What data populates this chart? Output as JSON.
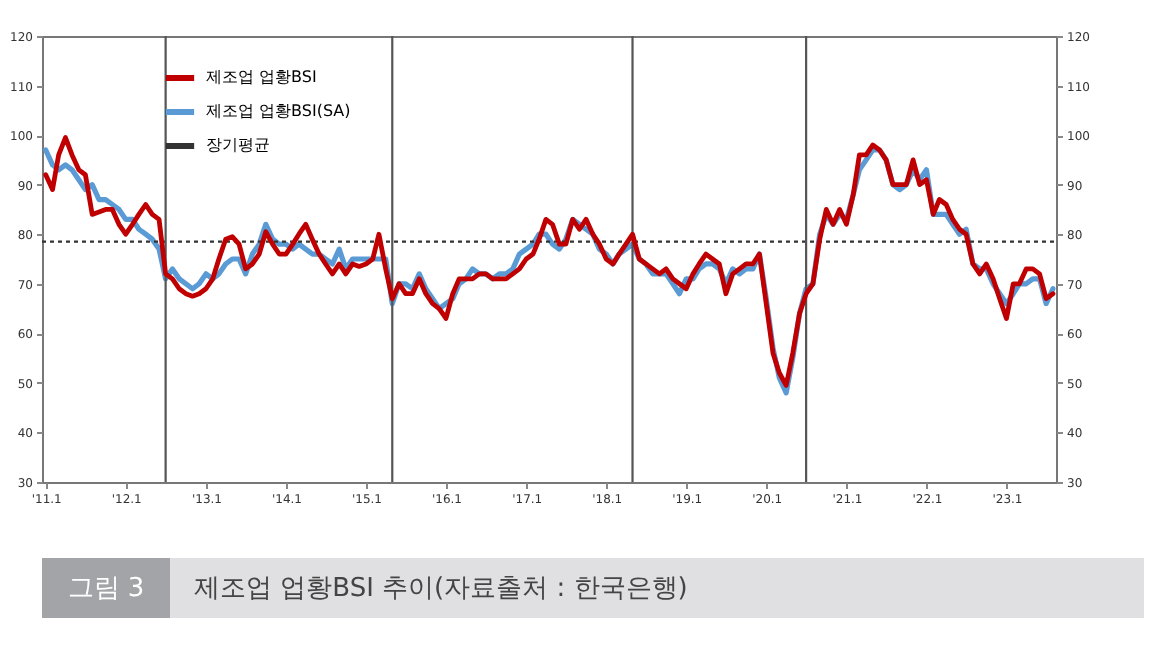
{
  "chart_data": {
    "type": "line",
    "x": [
      "2011-01",
      "2011-02",
      "2011-03",
      "2011-04",
      "2011-05",
      "2011-06",
      "2011-07",
      "2011-08",
      "2011-09",
      "2011-10",
      "2011-11",
      "2011-12",
      "2012-01",
      "2012-02",
      "2012-03",
      "2012-04",
      "2012-05",
      "2012-06",
      "2012-07",
      "2012-08",
      "2012-09",
      "2012-10",
      "2012-11",
      "2012-12",
      "2013-01",
      "2013-02",
      "2013-03",
      "2013-04",
      "2013-05",
      "2013-06",
      "2013-07",
      "2013-08",
      "2013-09",
      "2013-10",
      "2013-11",
      "2013-12",
      "2014-01",
      "2014-02",
      "2014-03",
      "2014-04",
      "2014-05",
      "2014-06",
      "2014-07",
      "2014-08",
      "2014-09",
      "2014-10",
      "2014-11",
      "2014-12",
      "2015-01",
      "2015-02",
      "2015-03",
      "2015-04",
      "2015-05",
      "2015-06",
      "2015-07",
      "2015-08",
      "2015-09",
      "2015-10",
      "2015-11",
      "2015-12",
      "2016-01",
      "2016-02",
      "2016-03",
      "2016-04",
      "2016-05",
      "2016-06",
      "2016-07",
      "2016-08",
      "2016-09",
      "2016-10",
      "2016-11",
      "2016-12",
      "2017-01",
      "2017-02",
      "2017-03",
      "2017-04",
      "2017-05",
      "2017-06",
      "2017-07",
      "2017-08",
      "2017-09",
      "2017-10",
      "2017-11",
      "2017-12",
      "2018-01",
      "2018-02",
      "2018-03",
      "2018-04",
      "2018-05",
      "2018-06",
      "2018-07",
      "2018-08",
      "2018-09",
      "2018-10",
      "2018-11",
      "2018-12",
      "2019-01",
      "2019-02",
      "2019-03",
      "2019-04",
      "2019-05",
      "2019-06",
      "2019-07",
      "2019-08",
      "2019-09",
      "2019-10",
      "2019-11",
      "2019-12",
      "2020-01",
      "2020-02",
      "2020-03",
      "2020-04",
      "2020-05",
      "2020-06",
      "2020-07",
      "2020-08",
      "2020-09",
      "2020-10",
      "2020-11",
      "2020-12",
      "2021-01",
      "2021-02",
      "2021-03",
      "2021-04",
      "2021-05",
      "2021-06",
      "2021-07",
      "2021-08",
      "2021-09",
      "2021-10",
      "2021-11",
      "2021-12",
      "2022-01",
      "2022-02",
      "2022-03",
      "2022-04",
      "2022-05",
      "2022-06",
      "2022-07",
      "2022-08",
      "2022-09",
      "2022-10",
      "2022-11",
      "2022-12",
      "2023-01",
      "2023-02",
      "2023-03",
      "2023-04",
      "2023-05",
      "2023-06",
      "2023-07",
      "2023-08"
    ],
    "series": [
      {
        "name": "제조업 업황BSI",
        "color": "#c00000",
        "values": [
          92,
          89,
          96,
          99.5,
          96,
          93,
          92,
          84,
          84.5,
          85,
          85,
          82,
          80,
          82,
          84,
          86,
          84,
          83,
          72,
          71,
          69,
          68,
          67.5,
          68,
          69,
          71,
          75,
          79,
          79.5,
          78,
          73,
          74,
          76,
          80.5,
          78,
          76,
          76,
          78,
          80,
          82,
          79,
          76,
          74,
          72,
          74,
          72,
          74,
          73.5,
          74,
          75,
          80,
          73,
          67,
          70,
          68,
          68,
          71,
          68,
          66,
          65,
          63,
          68,
          71,
          71,
          71,
          72,
          72,
          71,
          71,
          71,
          72,
          73,
          75,
          76,
          79,
          83,
          82,
          78,
          78,
          83,
          81,
          83,
          80,
          78,
          75,
          74,
          76,
          78,
          80,
          75,
          74,
          73,
          72,
          73,
          71,
          70,
          69,
          72,
          74,
          76,
          75,
          74,
          68,
          72,
          73,
          74,
          74,
          76,
          66,
          56,
          52,
          49.5,
          56,
          64,
          68,
          70,
          79,
          85,
          82,
          85,
          82,
          88,
          96,
          96,
          98,
          97,
          95,
          90,
          90,
          90,
          95,
          90,
          91,
          84,
          87,
          86,
          83,
          81,
          80,
          74,
          72,
          74,
          71,
          67,
          63,
          70,
          70,
          73,
          73,
          72,
          67,
          68
        ]
      },
      {
        "name": "제조업 업황BSI(SA)",
        "color": "#5b9bd5",
        "values": [
          97,
          94,
          93,
          94,
          93,
          91,
          89,
          90,
          87,
          87,
          86,
          85,
          83,
          83,
          81,
          80,
          79,
          77,
          71,
          73,
          71,
          70,
          69,
          70,
          72,
          71,
          72,
          74,
          75,
          75,
          72,
          76,
          78,
          82,
          79,
          78,
          78,
          77,
          78,
          77,
          76,
          76,
          75,
          74,
          77,
          73,
          75,
          75,
          75,
          75,
          75,
          75,
          66,
          70,
          70,
          69,
          72,
          69,
          67,
          65,
          66,
          67,
          70,
          71,
          73,
          72,
          72,
          71,
          72,
          72,
          73,
          76,
          77,
          78,
          80,
          80,
          78,
          77,
          79,
          83,
          82,
          81,
          80,
          77,
          76,
          74,
          76,
          77,
          78,
          75,
          74,
          72,
          72,
          72,
          70,
          68,
          71,
          71,
          73,
          74,
          74,
          73,
          70,
          73,
          72,
          73,
          73,
          76,
          67,
          57,
          51,
          48,
          55,
          64,
          69,
          70,
          80,
          84,
          82,
          84,
          83,
          88,
          93,
          95,
          97,
          97,
          95,
          90,
          89,
          90,
          93,
          91,
          93,
          84,
          84,
          84,
          82,
          80,
          81,
          74,
          73,
          73,
          70,
          68,
          66,
          68,
          70,
          70,
          71,
          71,
          66,
          69
        ]
      }
    ],
    "ref_lines": [
      {
        "axis": "y",
        "value": 78.5,
        "label": "장기평균",
        "color": "#333333",
        "line_style": "dotted"
      },
      {
        "axis": "x",
        "value": "2012-07",
        "color": "#555555"
      },
      {
        "axis": "x",
        "value": "2015-05",
        "color": "#555555"
      },
      {
        "axis": "x",
        "value": "2018-05",
        "color": "#555555"
      },
      {
        "axis": "x",
        "value": "2020-07",
        "color": "#555555"
      }
    ],
    "xlim": [
      "2010-12-15",
      "2023-08-15"
    ],
    "xticks": [
      {
        "value": "2011-01",
        "label": "'11.1"
      },
      {
        "value": "2012-01",
        "label": "'12.1"
      },
      {
        "value": "2013-01",
        "label": "'13.1"
      },
      {
        "value": "2014-01",
        "label": "'14.1"
      },
      {
        "value": "2015-01",
        "label": "'15.1"
      },
      {
        "value": "2016-01",
        "label": "'16.1"
      },
      {
        "value": "2017-01",
        "label": "'17.1"
      },
      {
        "value": "2018-01",
        "label": "'18.1"
      },
      {
        "value": "2019-01",
        "label": "'19.1"
      },
      {
        "value": "2020-01",
        "label": "'20.1"
      },
      {
        "value": "2021-01",
        "label": "'21.1"
      },
      {
        "value": "2022-01",
        "label": "'22.1"
      },
      {
        "value": "2023-01",
        "label": "'23.1"
      }
    ],
    "ylim": [
      30,
      120
    ],
    "yticks": [
      30,
      40,
      50,
      60,
      70,
      80,
      90,
      100,
      110,
      120
    ],
    "y2lim": [
      30,
      120
    ],
    "y2ticks": [
      30,
      40,
      50,
      60,
      70,
      80,
      90,
      100,
      110,
      120
    ],
    "grid": false,
    "legend": "top left",
    "marker": "none",
    "line_style": "solid",
    "annotations": [
      "그림 3",
      "제조업 업황BSI 추이(자료출처 : 한국은행)"
    ]
  }
}
